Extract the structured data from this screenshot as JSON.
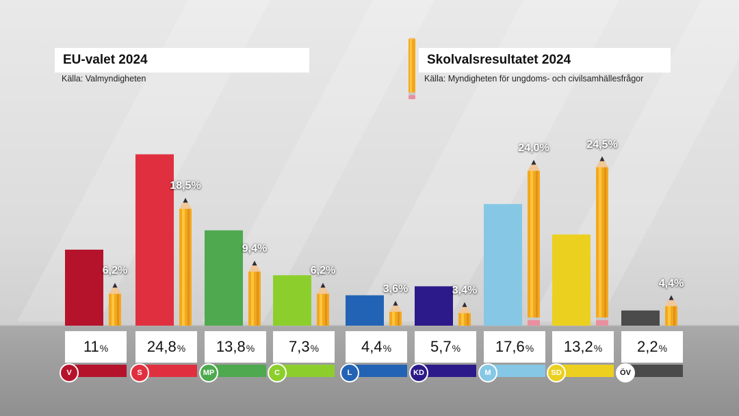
{
  "legend": {
    "eu_title": "EU-valet 2024",
    "eu_source": "Källa: Valmyndigheten",
    "school_title": "Skolvalsresultatet 2024",
    "school_source": "Källa: Myndigheten för ungdoms- och civilsamhällesfrågor"
  },
  "chart_data": {
    "type": "bar",
    "title": "EU-valet 2024 vs Skolvalsresultatet 2024",
    "categories": [
      "V",
      "S",
      "MP",
      "C",
      "L",
      "KD",
      "M",
      "SD",
      "ÖV"
    ],
    "series": [
      {
        "name": "EU-valet 2024",
        "values": [
          11,
          24.8,
          13.8,
          7.3,
          4.4,
          5.7,
          17.6,
          13.2,
          2.2
        ],
        "labels": [
          "11",
          "24,8",
          "13,8",
          "7,3",
          "4,4",
          "5,7",
          "17,6",
          "13,2",
          "2,2"
        ]
      },
      {
        "name": "Skolvalsresultatet 2024",
        "values": [
          6.2,
          18.5,
          9.4,
          6.2,
          3.6,
          3.4,
          24.0,
          24.5,
          4.4
        ],
        "labels": [
          "6,2%",
          "18,5%",
          "9,4%",
          "6,2%",
          "3,6%",
          "3,4%",
          "24,0%",
          "24,5%",
          "4,4%"
        ]
      }
    ],
    "percent_sign": "%",
    "ylim": [
      0,
      28
    ],
    "colors": [
      "#b5132c",
      "#e03040",
      "#4ea94f",
      "#8ccf2c",
      "#2363b5",
      "#2c1a8a",
      "#86c7e6",
      "#ecd020",
      "#4b4b4b"
    ]
  }
}
